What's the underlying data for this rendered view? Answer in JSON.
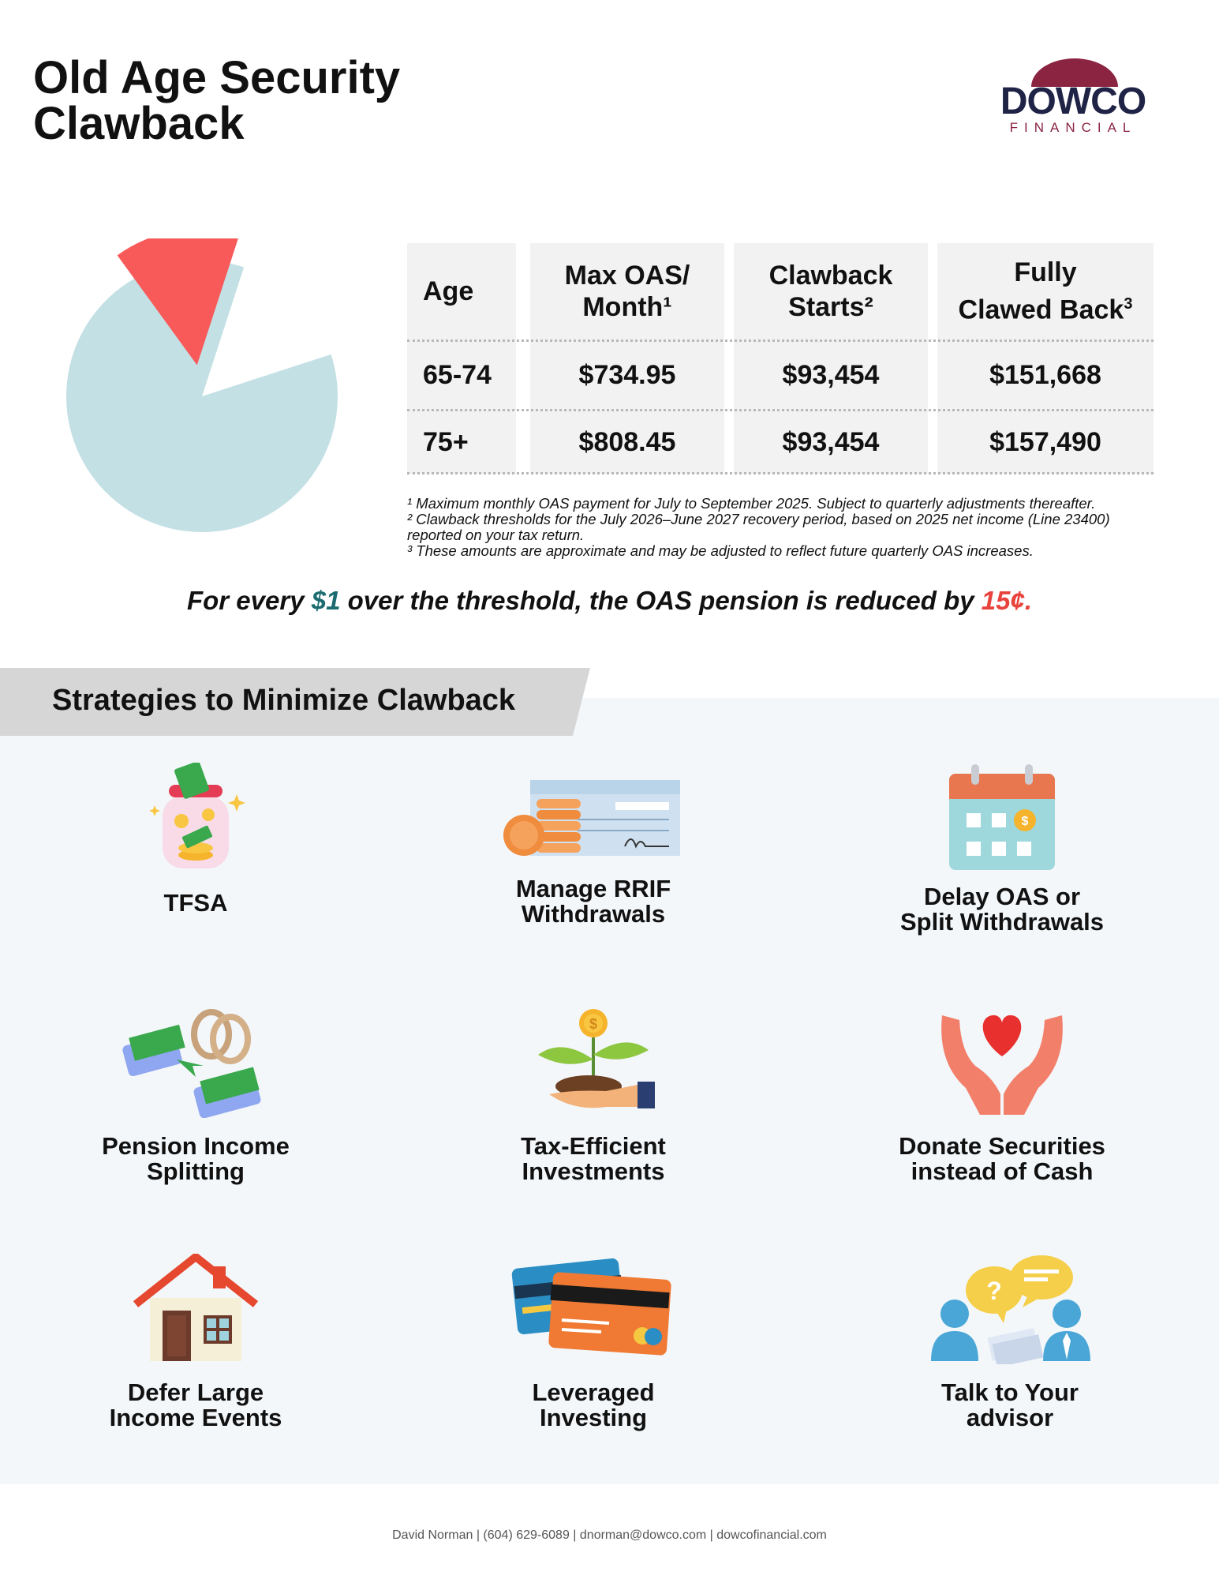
{
  "header": {
    "title_line1": "Old Age Security",
    "title_line2": "Clawback"
  },
  "logo": {
    "name": "DOWCO",
    "sub": "FINANCIAL",
    "colors": {
      "dark": "#1f2346",
      "accent": "#8a2440"
    }
  },
  "pie_chart": {
    "slices": [
      {
        "value": 85,
        "color": "#c3e0e4"
      },
      {
        "value": 15,
        "color": "#f85a5a"
      }
    ]
  },
  "table": {
    "headers": [
      {
        "line1": "Age",
        "line2": "",
        "sup": ""
      },
      {
        "line1": "Max OAS/",
        "line2": "Month¹",
        "sup": ""
      },
      {
        "line1": "Clawback",
        "line2": "Starts²",
        "sup": ""
      },
      {
        "line1": "Fully",
        "line2": "Clawed Back",
        "sup": "3"
      }
    ],
    "rows": [
      {
        "age": "65-74",
        "max_oas": "$734.95",
        "starts": "$93,454",
        "fully": "$151,668"
      },
      {
        "age": "75+",
        "max_oas": "$808.45",
        "starts": "$93,454",
        "fully": "$157,490"
      }
    ]
  },
  "footnotes": {
    "n1": "¹ Maximum monthly OAS payment for July to September 2025. Subject to quarterly adjustments thereafter.",
    "n2": "² Clawback thresholds for the July 2026–June 2027 recovery period, based on 2025 net income (Line 23400) reported on your tax return.",
    "n3": "³ These amounts are approximate and may be adjusted to reflect future quarterly OAS increases."
  },
  "statement": {
    "part1": "For every ",
    "dollar": "$1",
    "part2": " over the threshold, the OAS pension is reduced by ",
    "cents": "15¢."
  },
  "strategies": {
    "heading": "Strategies to Minimize Clawback",
    "items": [
      {
        "line1": "TFSA",
        "line2": "",
        "icon": "money-jar-icon"
      },
      {
        "line1": "Manage RRIF",
        "line2": "Withdrawals",
        "icon": "cheque-coins-icon"
      },
      {
        "line1": "Delay OAS or",
        "line2": "Split Withdrawals",
        "icon": "calendar-icon"
      },
      {
        "line1": "Pension Income",
        "line2": "Splitting",
        "icon": "rings-money-transfer-icon"
      },
      {
        "line1": "Tax-Efficient",
        "line2": "Investments",
        "icon": "plant-coin-icon"
      },
      {
        "line1": "Donate Securities",
        "line2": "instead of Cash",
        "icon": "hands-heart-icon"
      },
      {
        "line1": "Defer Large",
        "line2": "Income Events",
        "icon": "house-icon"
      },
      {
        "line1": "Leveraged",
        "line2": "Investing",
        "icon": "credit-cards-icon"
      },
      {
        "line1": "Talk to Your",
        "line2": "advisor",
        "icon": "advisor-chat-icon"
      }
    ]
  },
  "footer": {
    "text": "David Norman | (604) 629-6089 | dnorman@dowco.com | dowcofinancial.com"
  }
}
